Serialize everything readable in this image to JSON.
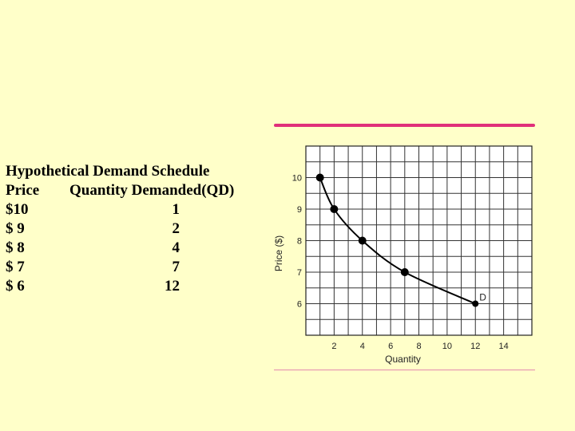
{
  "schedule": {
    "title": "Hypothetical Demand Schedule",
    "headers": {
      "price": "Price",
      "quantity": "Quantity Demanded(QD)"
    },
    "rows": [
      {
        "price": "$10",
        "quantity": "1"
      },
      {
        "price": "$ 9",
        "quantity": "2"
      },
      {
        "price": "$ 8",
        "quantity": "4"
      },
      {
        "price": "$ 7",
        "quantity": "7"
      },
      {
        "price": "$ 6",
        "quantity": "12"
      }
    ]
  },
  "colors": {
    "background": "#ffffc9",
    "accent_rule": "#e0307a"
  },
  "chart_data": {
    "type": "line",
    "xlabel": "Quantity",
    "ylabel": "Price ($)",
    "xlim": [
      0,
      16
    ],
    "ylim": [
      5,
      11
    ],
    "x_ticks": [
      2,
      4,
      6,
      8,
      10,
      12,
      14
    ],
    "y_ticks": [
      6,
      7,
      8,
      9,
      10
    ],
    "grid": true,
    "series": [
      {
        "name": "D",
        "points": [
          {
            "x": 1,
            "y": 10
          },
          {
            "x": 2,
            "y": 9
          },
          {
            "x": 4,
            "y": 8
          },
          {
            "x": 7,
            "y": 7
          },
          {
            "x": 12,
            "y": 6
          }
        ]
      }
    ]
  }
}
